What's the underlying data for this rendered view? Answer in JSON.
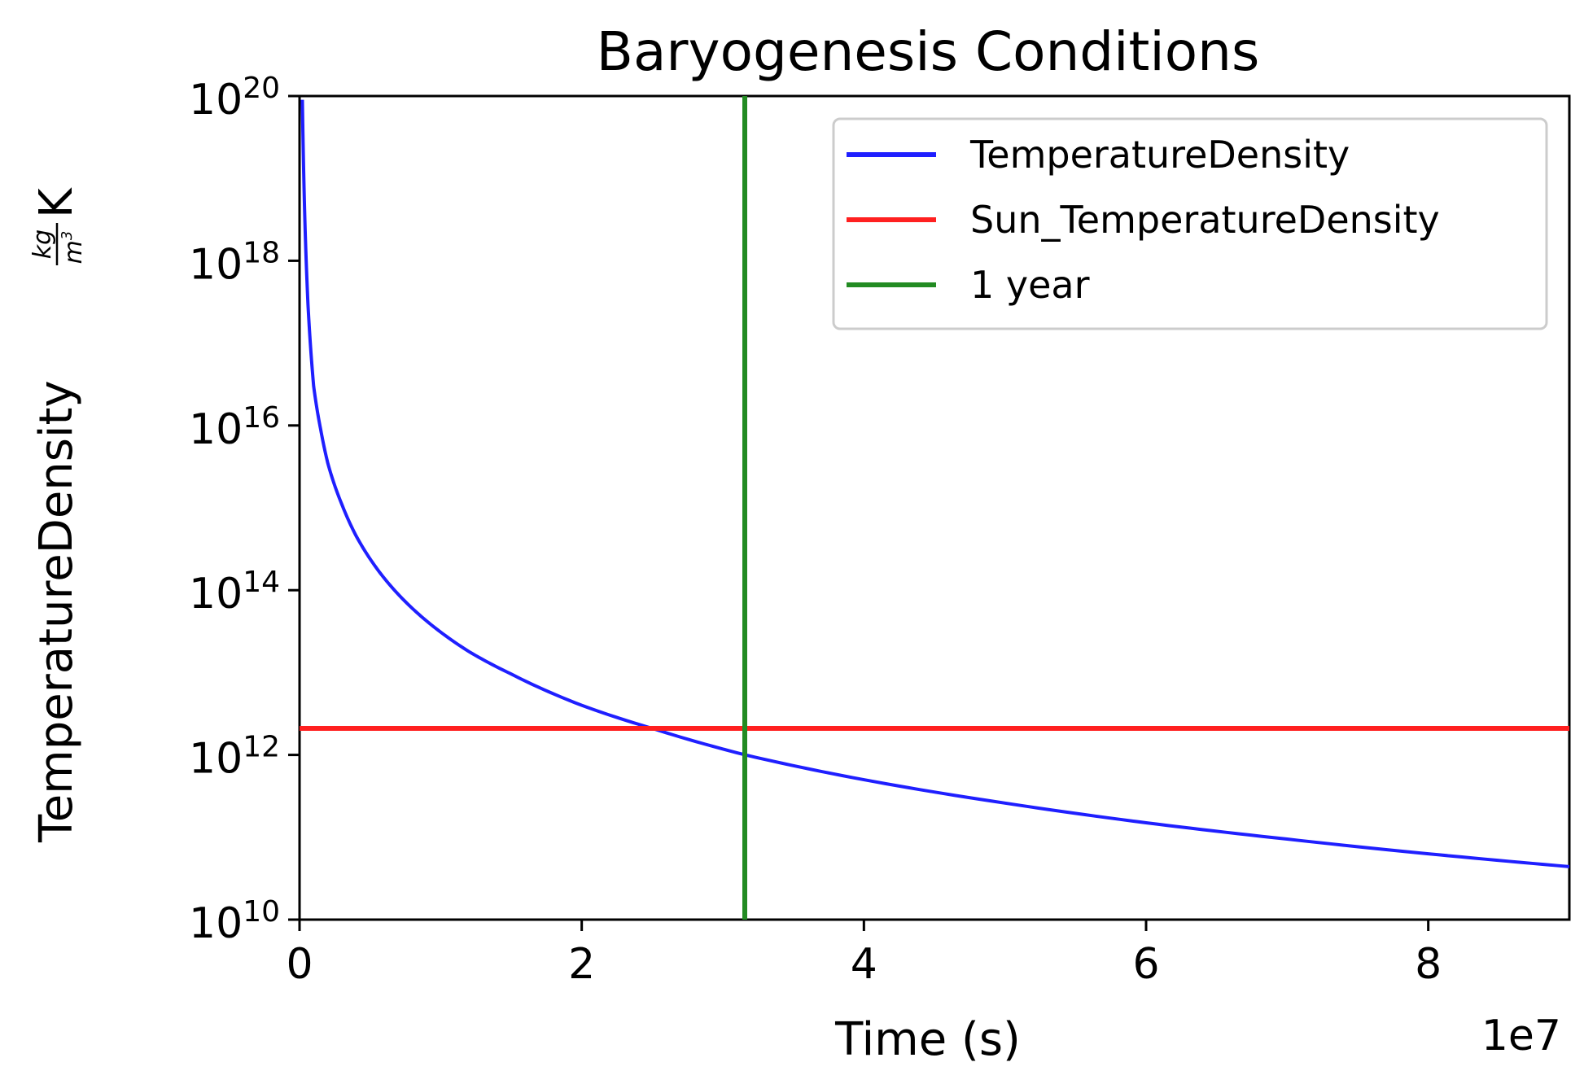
{
  "chart_data": {
    "type": "line",
    "title": "Baryogenesis Conditions",
    "xlabel": "Time (s)",
    "ylabel": {
      "prefix": "TemperatureDensity",
      "frac_num": "kg",
      "frac_den": "m",
      "frac_den_exp": "3",
      "suffix": "K"
    },
    "x_offset_label": "1e7",
    "xlim": [
      0,
      90000000
    ],
    "ylim": [
      10000000000.0,
      1e+20
    ],
    "yscale": "log",
    "grid": false,
    "legend_position": "upper-right",
    "x_ticks": [
      {
        "value": 0,
        "label": "0"
      },
      {
        "value": 20000000,
        "label": "2"
      },
      {
        "value": 40000000,
        "label": "4"
      },
      {
        "value": 60000000,
        "label": "6"
      },
      {
        "value": 80000000,
        "label": "8"
      }
    ],
    "y_ticks": [
      {
        "value": 10000000000.0,
        "base": "10",
        "exp": "10"
      },
      {
        "value": 1000000000000.0,
        "base": "10",
        "exp": "12"
      },
      {
        "value": 100000000000000.0,
        "base": "10",
        "exp": "14"
      },
      {
        "value": 1e+16,
        "base": "10",
        "exp": "16"
      },
      {
        "value": 1e+18,
        "base": "10",
        "exp": "18"
      },
      {
        "value": 1e+20,
        "base": "10",
        "exp": "20"
      }
    ],
    "series": [
      {
        "name": "TemperatureDensity",
        "color": "#1f1fff",
        "kind": "curve",
        "x": [
          200000,
          400000,
          600000,
          1000000,
          1500000,
          2000000,
          3000000,
          4000000,
          5000000,
          6000000,
          8000000,
          10000000,
          12000000,
          15000000,
          20000000,
          25000000,
          31600000,
          40000000,
          50000000,
          60000000,
          70000000,
          80000000,
          90000000
        ],
        "y": [
          9e+19,
          2.3e+18,
          2.9e+17,
          3e+16,
          8900000000000000.0,
          3500000000000000.0,
          1100000000000000.0,
          460000000000000.0,
          240000000000000.0,
          140000000000000.0,
          60000000000000.0,
          31000000000000.0,
          18000000000000.0,
          9600000000000.0,
          4000000000000.0,
          2100000000000.0,
          1000000000000.0,
          500000000000.0,
          260000000000.0,
          150000000000.0,
          95000000000.0,
          63000000000.0,
          44000000000.0
        ]
      },
      {
        "name": "Sun_TemperatureDensity",
        "color": "#ff2020",
        "kind": "hline",
        "y": 2100000000000.0
      },
      {
        "name": "1 year",
        "color": "#228b22",
        "kind": "vline",
        "x": 31557600
      }
    ]
  }
}
